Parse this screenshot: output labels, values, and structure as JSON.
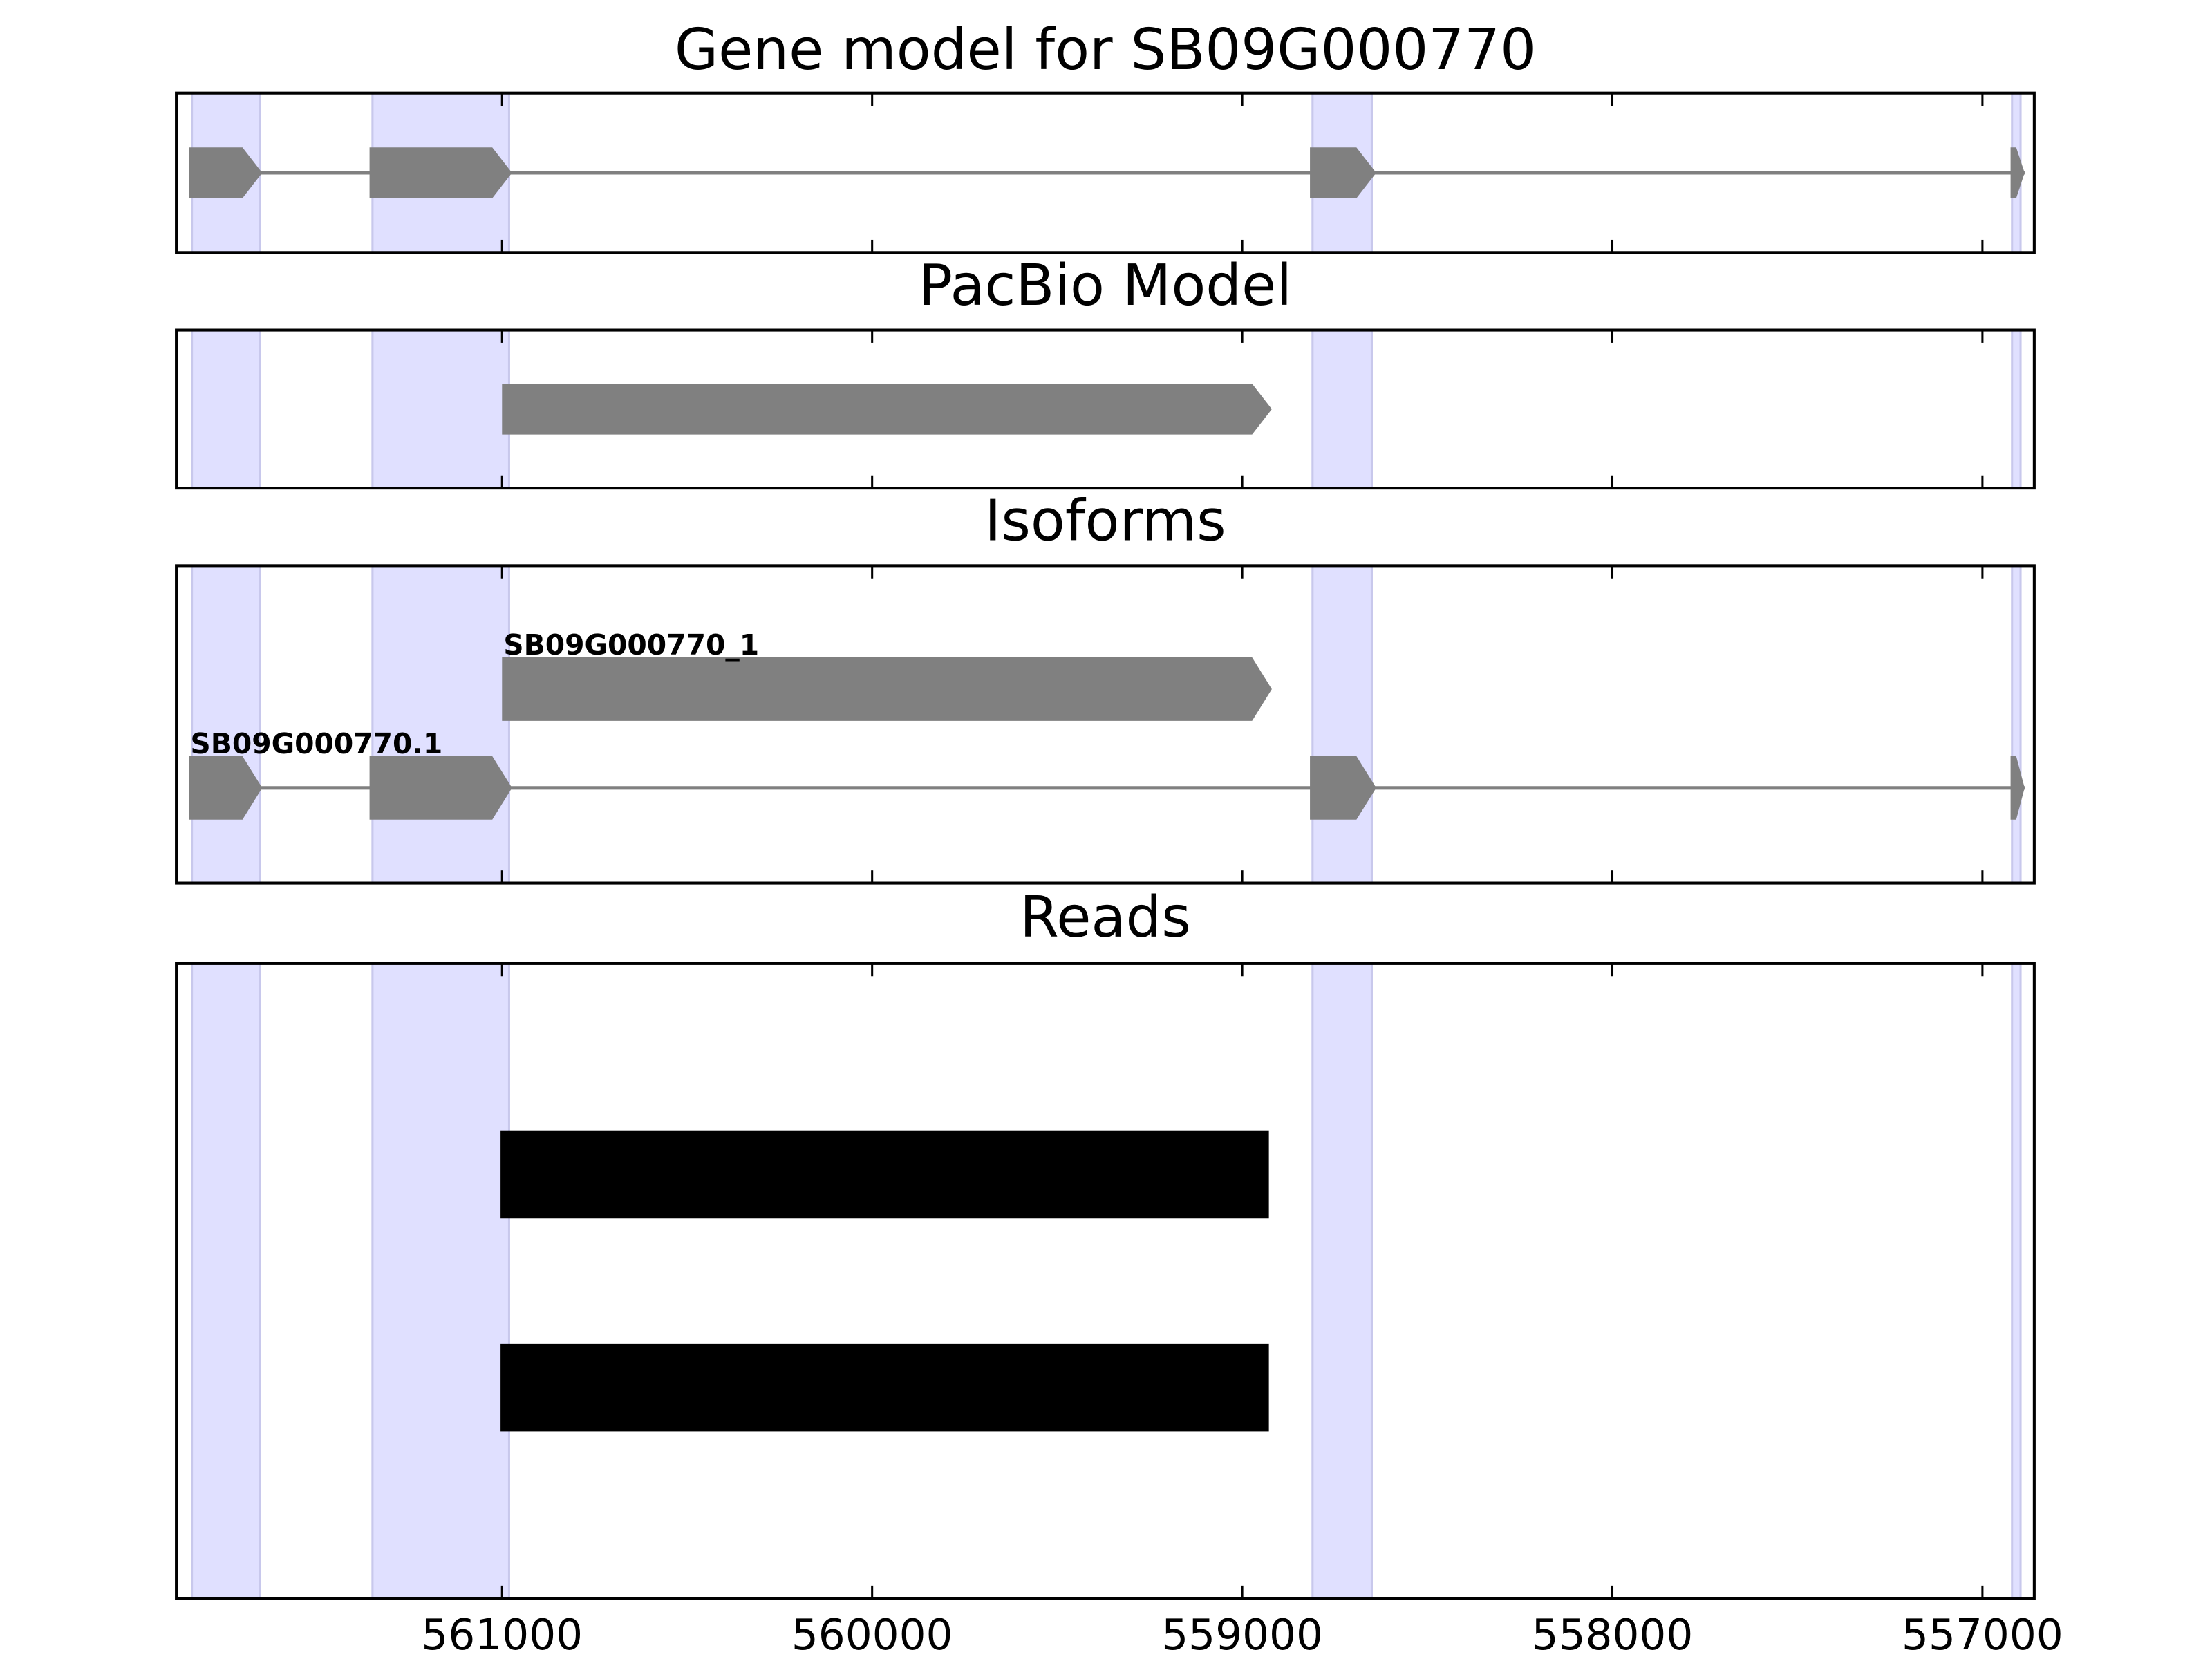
{
  "chart_data": [
    {
      "type": "gene-track",
      "title": "Gene model for SB09G000770",
      "xlim": [
        561880,
        556860
      ],
      "xticks": [
        561000,
        560000,
        559000,
        558000,
        557000
      ],
      "highlights": [
        [
          561838,
          561655
        ],
        [
          561350,
          560981
        ],
        [
          558810,
          558650
        ],
        [
          556920,
          556897
        ]
      ],
      "highlight_color": "#e0e0ff",
      "color": "#808080",
      "features": [
        {
          "exons": [
            [
              561846,
              561648
            ],
            [
              561358,
              560973
            ],
            [
              558817,
              558638
            ],
            [
              556924,
              556886
            ]
          ]
        }
      ]
    },
    {
      "type": "gene-track",
      "title": "PacBio Model",
      "xlim": [
        561880,
        556860
      ],
      "xticks": [
        561000,
        560000,
        559000,
        558000,
        557000
      ],
      "highlights": [
        [
          561838,
          561655
        ],
        [
          561350,
          560981
        ],
        [
          558810,
          558650
        ],
        [
          556920,
          556897
        ]
      ],
      "highlight_color": "#e0e0ff",
      "color": "#808080",
      "features": [
        {
          "exons": [
            [
              561000,
              558920
            ]
          ]
        }
      ]
    },
    {
      "type": "gene-track",
      "title": "Isoforms",
      "xlim": [
        561880,
        556860
      ],
      "xticks": [
        561000,
        560000,
        559000,
        558000,
        557000
      ],
      "highlights": [
        [
          561838,
          561655
        ],
        [
          561350,
          560981
        ],
        [
          558810,
          558650
        ],
        [
          556920,
          556897
        ]
      ],
      "highlight_color": "#e0e0ff",
      "color": "#808080",
      "features": [
        {
          "name": "SB09G000770_1",
          "exons": [
            [
              561000,
              558920
            ]
          ]
        },
        {
          "name": "SB09G000770.1",
          "exons": [
            [
              561846,
              561648
            ],
            [
              561358,
              560973
            ],
            [
              558817,
              558638
            ],
            [
              556924,
              556886
            ]
          ]
        }
      ]
    },
    {
      "type": "reads",
      "title": "Reads",
      "xlim": [
        561880,
        556860
      ],
      "xticks": [
        561000,
        560000,
        559000,
        558000,
        557000
      ],
      "highlights": [
        [
          561838,
          561655
        ],
        [
          561350,
          560981
        ],
        [
          558810,
          558650
        ],
        [
          556920,
          556897
        ]
      ],
      "highlight_color": "#e0e0ff",
      "color": "#000000",
      "reads": [
        [
          561004,
          558928
        ],
        [
          561004,
          558928
        ]
      ]
    }
  ]
}
